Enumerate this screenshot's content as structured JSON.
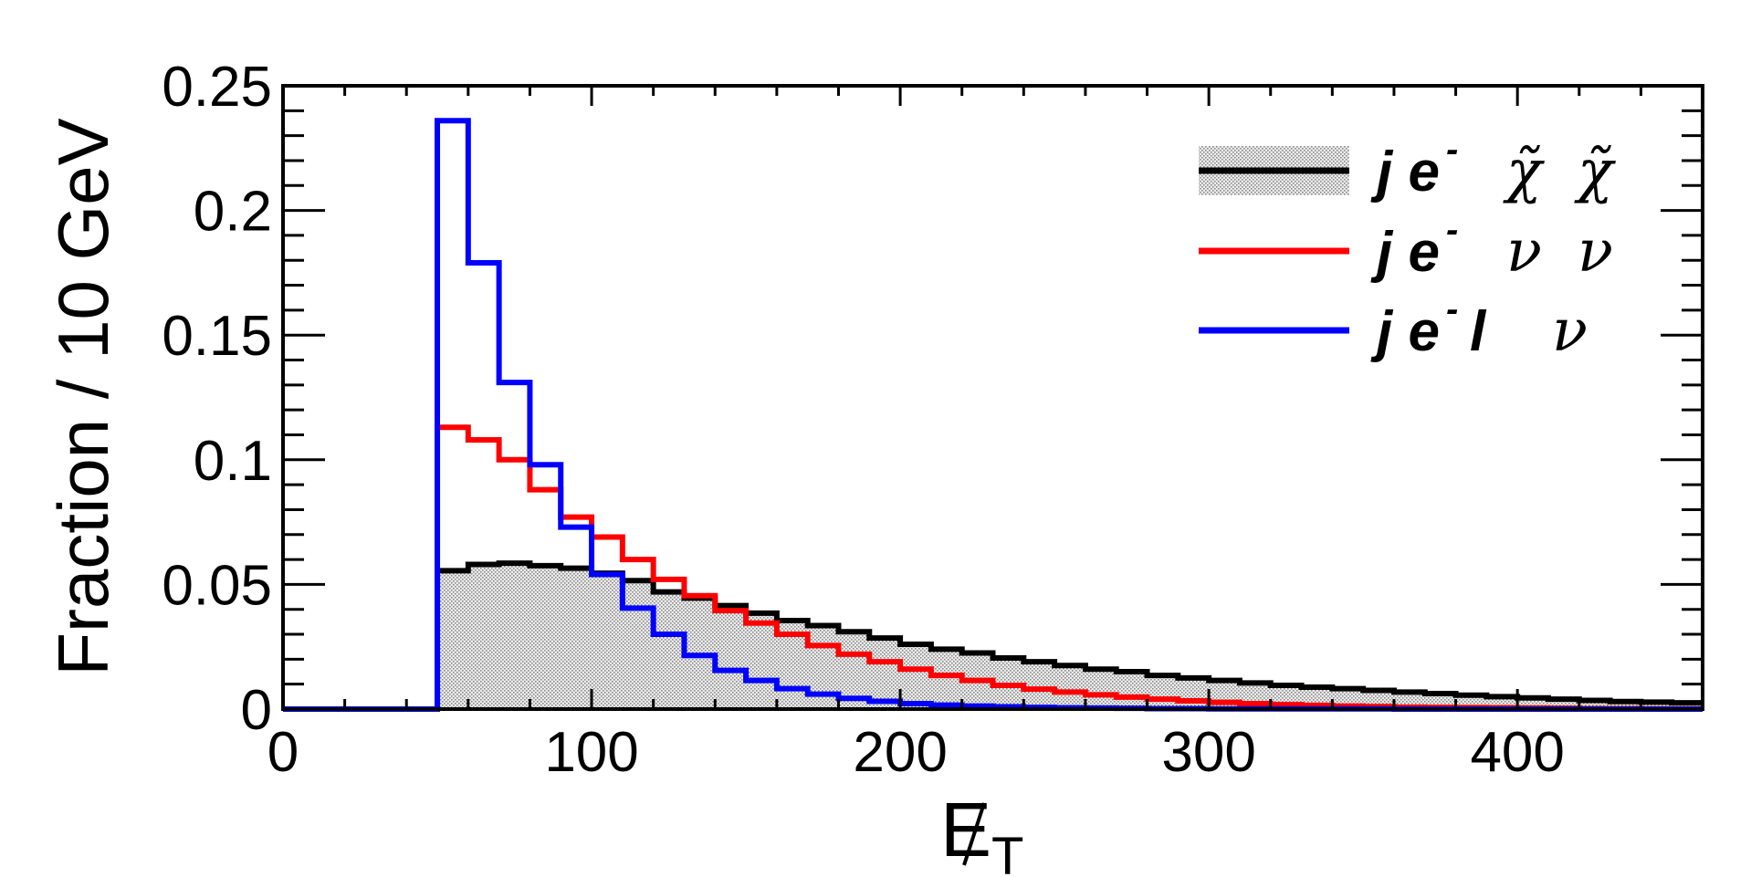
{
  "chart_data": {
    "type": "histogram",
    "ylabel": "Fraction / 10 GeV",
    "xlabel": {
      "main": "E",
      "sub": "T"
    },
    "xlim": [
      0,
      460
    ],
    "ylim": [
      0,
      0.25
    ],
    "bin_width": 10,
    "x_ticks": [
      "0",
      "100",
      "200",
      "300",
      "400"
    ],
    "x_tick_values": [
      0,
      100,
      200,
      300,
      400
    ],
    "y_ticks": [
      "0",
      "0.05",
      "0.1",
      "0.15",
      "0.2",
      "0.25"
    ],
    "y_tick_values": [
      0,
      0.05,
      0.1,
      0.15,
      0.2,
      0.25
    ],
    "legend_position": "top-right",
    "series": [
      {
        "key": "chi",
        "legend": {
          "base": "j e",
          "sup": "-",
          "part1": "χ̃",
          "part2": "χ̃"
        },
        "color": "#000000",
        "filled": true,
        "bin_edges_start": 50,
        "values": [
          0.0555,
          0.058,
          0.0585,
          0.0575,
          0.0565,
          0.0545,
          0.0515,
          0.047,
          0.0445,
          0.0415,
          0.0385,
          0.0355,
          0.0335,
          0.031,
          0.0285,
          0.026,
          0.024,
          0.0225,
          0.0205,
          0.019,
          0.0175,
          0.016,
          0.015,
          0.0135,
          0.0125,
          0.0115,
          0.0105,
          0.0095,
          0.0088,
          0.0082,
          0.0075,
          0.0068,
          0.0062,
          0.0056,
          0.005,
          0.0045,
          0.004,
          0.0035,
          0.003,
          0.0028,
          0.0025
        ]
      },
      {
        "key": "nu",
        "legend": {
          "base": "j e",
          "sup": "-",
          "part1": "ν",
          "part2": "ν"
        },
        "color": "#ff0000",
        "filled": false,
        "bin_edges_start": 50,
        "values": [
          0.113,
          0.108,
          0.1,
          0.088,
          0.077,
          0.069,
          0.06,
          0.052,
          0.0455,
          0.0395,
          0.0345,
          0.03,
          0.0255,
          0.022,
          0.019,
          0.016,
          0.0135,
          0.0115,
          0.0095,
          0.008,
          0.0068,
          0.0057,
          0.0048,
          0.004,
          0.0033,
          0.0027,
          0.0022,
          0.0018,
          0.0015,
          0.0012,
          0.001,
          0.0008,
          0.0007,
          0.0006,
          0.0005,
          0.0004,
          0.0003,
          0.0002,
          0.0002,
          0.0001,
          0.0001
        ]
      },
      {
        "key": "lnu",
        "legend": {
          "base": "j e",
          "sup": "-",
          "part1": "l",
          "part2": "ν"
        },
        "color": "#0000ff",
        "filled": false,
        "bin_edges_start": 50,
        "values": [
          0.236,
          0.179,
          0.131,
          0.098,
          0.073,
          0.054,
          0.0405,
          0.03,
          0.0215,
          0.0155,
          0.0115,
          0.0082,
          0.006,
          0.0043,
          0.0031,
          0.0022,
          0.0016,
          0.0012,
          0.0009,
          0.0007,
          0.0005,
          0.0004,
          0.0003,
          0.0002,
          0.0002,
          0.0001,
          0.0001,
          0.0001,
          0.0001,
          0.0001,
          0.0001,
          0.0,
          0.0,
          0.0,
          0.0,
          0.0,
          0.0,
          0.0,
          0.0,
          0.0,
          0.0
        ]
      }
    ]
  }
}
